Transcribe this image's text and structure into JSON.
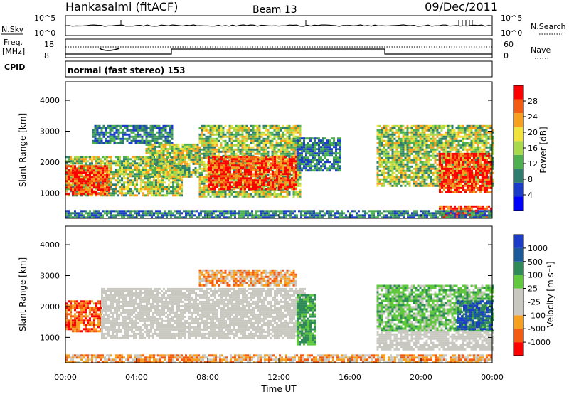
{
  "header": {
    "station": "Hankasalmi (fitACF)",
    "beam": "Beam 13",
    "date": "09/Dec/2011"
  },
  "top_panels": {
    "nsky_label": "N.Sky",
    "nsearch_label": "N.Search",
    "freq_label_1": "Freq.",
    "freq_label_2": "[MHz]",
    "nave_label": "Nave",
    "cpid_label": "CPID",
    "cpid_text": "normal (fast stereo) 153",
    "noise_ticks": [
      "10^5",
      "10^0"
    ],
    "freq_ticks": [
      "18",
      "8"
    ],
    "nave_ticks": [
      "60",
      "0"
    ]
  },
  "chart_data": [
    {
      "type": "heatmap",
      "name": "power",
      "ylabel": "Slant Range [km]",
      "ylim": [
        180,
        4600
      ],
      "yticks": [
        "1000",
        "2000",
        "3000",
        "4000"
      ],
      "xticks": [
        "00:00",
        "04:00",
        "08:00",
        "12:00",
        "16:00",
        "20:00",
        "00:00"
      ],
      "xlim": [
        0,
        24
      ],
      "colorbar": {
        "label": "Power [dB]",
        "ticks": [
          "28",
          "24",
          "20",
          "16",
          "12",
          "8",
          "4"
        ],
        "colors": [
          "#0000ff",
          "#1a3cc8",
          "#2e7d6e",
          "#4caf50",
          "#a8d94a",
          "#f2e23c",
          "#f7a020",
          "#f45a10",
          "#ff0000"
        ]
      },
      "regions": [
        {
          "t0": 0.0,
          "t1": 6.5,
          "r0": 900,
          "r1": 2200,
          "level": "mid"
        },
        {
          "t0": 0.0,
          "t1": 2.5,
          "r0": 1000,
          "r1": 1900,
          "level": "high"
        },
        {
          "t0": 1.5,
          "t1": 6.0,
          "r0": 2600,
          "r1": 3200,
          "level": "low"
        },
        {
          "t0": 4.5,
          "t1": 7.5,
          "r0": 1500,
          "r1": 2600,
          "level": "mid"
        },
        {
          "t0": 7.5,
          "t1": 13.2,
          "r0": 900,
          "r1": 3200,
          "level": "mid"
        },
        {
          "t0": 8.0,
          "t1": 13.0,
          "r0": 1100,
          "r1": 2200,
          "level": "high"
        },
        {
          "t0": 13.0,
          "t1": 15.5,
          "r0": 1700,
          "r1": 2800,
          "level": "low"
        },
        {
          "t0": 17.5,
          "t1": 24.0,
          "r0": 1200,
          "r1": 3200,
          "level": "mid"
        },
        {
          "t0": 21.0,
          "t1": 24.0,
          "r0": 1000,
          "r1": 2300,
          "level": "high"
        },
        {
          "t0": 21.0,
          "t1": 24.0,
          "r0": 200,
          "r1": 600,
          "level": "high"
        },
        {
          "t0": 0.0,
          "t1": 24.0,
          "r0": 180,
          "r1": 450,
          "level": "low"
        }
      ]
    },
    {
      "type": "heatmap",
      "name": "velocity",
      "xlabel": "Time UT",
      "ylabel": "Slant Range [km]",
      "ylim": [
        180,
        4600
      ],
      "yticks": [
        "1000",
        "2000",
        "3000",
        "4000"
      ],
      "xticks": [
        "00:00",
        "04:00",
        "08:00",
        "12:00",
        "16:00",
        "20:00",
        "00:00"
      ],
      "xlim": [
        0,
        24
      ],
      "colorbar": {
        "label": "Velocity [m s⁻¹]",
        "ticks": [
          "1000",
          "500",
          "100",
          "25",
          "-25",
          "-100",
          "-500",
          "-1000"
        ],
        "colors": [
          "#ff0000",
          "#f45a10",
          "#f7a020",
          "#c8c8c0",
          "#c8c8c0",
          "#5fc83c",
          "#2e8b57",
          "#1a5a9a",
          "#1a3cc8"
        ]
      },
      "regions": [
        {
          "t0": 0.0,
          "t1": 2.0,
          "r0": 1200,
          "r1": 2200,
          "level": "neg-mid"
        },
        {
          "t0": 2.0,
          "t1": 13.5,
          "r0": 1000,
          "r1": 2600,
          "level": "ground"
        },
        {
          "t0": 7.5,
          "t1": 13.0,
          "r0": 2700,
          "r1": 3200,
          "level": "neg-low"
        },
        {
          "t0": 13.0,
          "t1": 14.0,
          "r0": 800,
          "r1": 2400,
          "level": "pos-mid"
        },
        {
          "t0": 17.5,
          "t1": 24.0,
          "r0": 1200,
          "r1": 2700,
          "level": "pos-low"
        },
        {
          "t0": 22.0,
          "t1": 24.0,
          "r0": 1300,
          "r1": 2200,
          "level": "pos-high"
        },
        {
          "t0": 17.5,
          "t1": 24.0,
          "r0": 600,
          "r1": 1200,
          "level": "ground"
        },
        {
          "t0": 0.0,
          "t1": 24.0,
          "r0": 180,
          "r1": 450,
          "level": "neg-low"
        }
      ]
    }
  ]
}
